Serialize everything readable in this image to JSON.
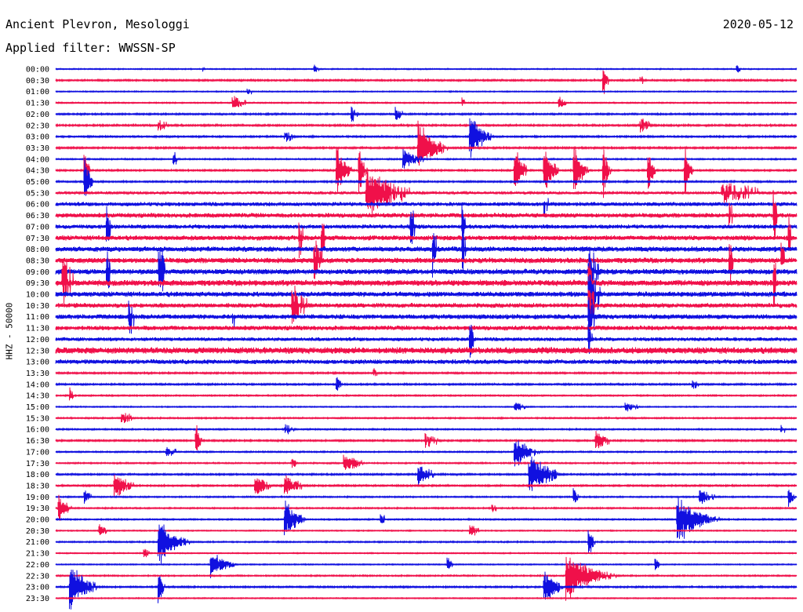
{
  "header": {
    "station": "Ancient Plevron, Mesologgi",
    "date": "2020-05-12",
    "filter": "Applied filter: WWSSN-SP"
  },
  "chart_data": {
    "type": "line",
    "title": "Ancient Plevron, Mesologgi",
    "ylabel": "HHZ - 50000",
    "colors": [
      "#1010e0",
      "#f0104a"
    ],
    "rows": [
      {
        "label": "00:00",
        "noise": 0.08,
        "events": [
          {
            "x": 0.2,
            "amp": 0.12,
            "dur": 0.01
          },
          {
            "x": 0.35,
            "amp": 0.15,
            "dur": 0.01
          },
          {
            "x": 0.92,
            "amp": 0.2,
            "dur": 0.005
          }
        ]
      },
      {
        "label": "00:30",
        "noise": 0.12,
        "events": [
          {
            "x": 0.74,
            "amp": 0.55,
            "dur": 0.005
          },
          {
            "x": 0.79,
            "amp": 0.18,
            "dur": 0.01
          }
        ]
      },
      {
        "label": "01:00",
        "noise": 0.08,
        "events": [
          {
            "x": 0.26,
            "amp": 0.15,
            "dur": 0.01
          }
        ]
      },
      {
        "label": "01:30",
        "noise": 0.09,
        "events": [
          {
            "x": 0.24,
            "amp": 0.25,
            "dur": 0.02
          },
          {
            "x": 0.55,
            "amp": 0.2,
            "dur": 0.005
          },
          {
            "x": 0.68,
            "amp": 0.25,
            "dur": 0.01
          }
        ]
      },
      {
        "label": "02:00",
        "noise": 0.12,
        "events": [
          {
            "x": 0.4,
            "amp": 0.3,
            "dur": 0.01
          },
          {
            "x": 0.46,
            "amp": 0.3,
            "dur": 0.01
          }
        ]
      },
      {
        "label": "02:30",
        "noise": 0.13,
        "events": [
          {
            "x": 0.14,
            "amp": 0.2,
            "dur": 0.03
          },
          {
            "x": 0.79,
            "amp": 0.3,
            "dur": 0.02
          }
        ]
      },
      {
        "label": "03:00",
        "noise": 0.12,
        "events": [
          {
            "x": 0.56,
            "amp": 1.0,
            "dur": 0.015
          },
          {
            "x": 0.31,
            "amp": 0.25,
            "dur": 0.02
          }
        ]
      },
      {
        "label": "03:30",
        "noise": 0.13,
        "events": [
          {
            "x": 0.49,
            "amp": 1.0,
            "dur": 0.02
          }
        ]
      },
      {
        "label": "04:00",
        "noise": 0.1,
        "events": [
          {
            "x": 0.47,
            "amp": 0.4,
            "dur": 0.02
          },
          {
            "x": 0.16,
            "amp": 0.3,
            "dur": 0.005
          }
        ]
      },
      {
        "label": "04:30",
        "noise": 0.12,
        "events": [
          {
            "x": 0.04,
            "amp": 1.0,
            "dur": 0.004
          },
          {
            "x": 0.38,
            "amp": 1.0,
            "dur": 0.01
          },
          {
            "x": 0.41,
            "amp": 1.0,
            "dur": 0.005
          },
          {
            "x": 0.62,
            "amp": 1.0,
            "dur": 0.01
          },
          {
            "x": 0.66,
            "amp": 1.0,
            "dur": 0.01
          },
          {
            "x": 0.7,
            "amp": 1.0,
            "dur": 0.01
          },
          {
            "x": 0.74,
            "amp": 1.0,
            "dur": 0.005
          },
          {
            "x": 0.8,
            "amp": 1.0,
            "dur": 0.005
          },
          {
            "x": 0.85,
            "amp": 1.0,
            "dur": 0.005
          }
        ]
      },
      {
        "label": "05:00",
        "noise": 0.12,
        "events": [
          {
            "x": 0.04,
            "amp": 1.0,
            "dur": 0.006
          }
        ]
      },
      {
        "label": "05:30",
        "noise": 0.22,
        "events": [
          {
            "x": 0.42,
            "amp": 1.0,
            "dur": 0.04
          },
          {
            "x": 0.9,
            "amp": 0.4,
            "dur": 0.1
          }
        ]
      },
      {
        "label": "06:00",
        "noise": 0.32,
        "events": [
          {
            "x": 0.66,
            "amp": 0.6,
            "dur": 0.01
          },
          {
            "x": 0.15,
            "amp": 0.3,
            "dur": 0.01
          }
        ]
      },
      {
        "label": "06:30",
        "noise": 0.36,
        "events": [
          {
            "x": 0.91,
            "amp": 0.7,
            "dur": 0.005
          },
          {
            "x": 0.97,
            "amp": 1.0,
            "dur": 0.005
          }
        ]
      },
      {
        "label": "07:00",
        "noise": 0.33,
        "events": [
          {
            "x": 0.48,
            "amp": 1.0,
            "dur": 0.005
          },
          {
            "x": 0.55,
            "amp": 1.0,
            "dur": 0.004
          },
          {
            "x": 0.07,
            "amp": 1.0,
            "dur": 0.004
          }
        ]
      },
      {
        "label": "07:30",
        "noise": 0.38,
        "events": [
          {
            "x": 0.33,
            "amp": 0.9,
            "dur": 0.005
          },
          {
            "x": 0.36,
            "amp": 1.0,
            "dur": 0.005
          },
          {
            "x": 0.99,
            "amp": 1.0,
            "dur": 0.005
          }
        ]
      },
      {
        "label": "08:00",
        "noise": 0.4,
        "events": [
          {
            "x": 0.51,
            "amp": 1.0,
            "dur": 0.005
          },
          {
            "x": 0.55,
            "amp": 1.0,
            "dur": 0.004
          }
        ]
      },
      {
        "label": "08:30",
        "noise": 0.42,
        "events": [
          {
            "x": 0.35,
            "amp": 1.0,
            "dur": 0.01
          },
          {
            "x": 0.91,
            "amp": 1.0,
            "dur": 0.005
          },
          {
            "x": 0.98,
            "amp": 1.0,
            "dur": 0.005
          }
        ]
      },
      {
        "label": "09:00",
        "noise": 0.42,
        "events": [
          {
            "x": 0.14,
            "amp": 1.0,
            "dur": 0.015
          },
          {
            "x": 0.07,
            "amp": 1.0,
            "dur": 0.005
          },
          {
            "x": 0.72,
            "amp": 1.0,
            "dur": 0.02
          }
        ]
      },
      {
        "label": "09:30",
        "noise": 0.46,
        "events": [
          {
            "x": 0.01,
            "amp": 1.0,
            "dur": 0.02
          },
          {
            "x": 0.72,
            "amp": 1.0,
            "dur": 0.01
          },
          {
            "x": 0.97,
            "amp": 1.0,
            "dur": 0.005
          }
        ]
      },
      {
        "label": "10:00",
        "noise": 0.4,
        "events": [
          {
            "x": 0.72,
            "amp": 1.0,
            "dur": 0.02
          },
          {
            "x": 0.2,
            "amp": 0.3,
            "dur": 0.01
          }
        ]
      },
      {
        "label": "10:30",
        "noise": 0.36,
        "events": [
          {
            "x": 0.32,
            "amp": 0.8,
            "dur": 0.03
          },
          {
            "x": 0.72,
            "amp": 1.0,
            "dur": 0.01
          }
        ]
      },
      {
        "label": "11:00",
        "noise": 0.38,
        "events": [
          {
            "x": 0.1,
            "amp": 0.8,
            "dur": 0.01
          },
          {
            "x": 0.24,
            "amp": 0.5,
            "dur": 0.01
          },
          {
            "x": 0.72,
            "amp": 1.0,
            "dur": 0.01
          },
          {
            "x": 0.77,
            "amp": 0.5,
            "dur": 0.01
          }
        ]
      },
      {
        "label": "11:30",
        "noise": 0.36,
        "events": []
      },
      {
        "label": "12:00",
        "noise": 0.3,
        "events": [
          {
            "x": 0.56,
            "amp": 0.9,
            "dur": 0.005
          },
          {
            "x": 0.72,
            "amp": 0.8,
            "dur": 0.005
          }
        ]
      },
      {
        "label": "12:30",
        "noise": 0.5,
        "events": []
      },
      {
        "label": "13:00",
        "noise": 0.36,
        "events": []
      },
      {
        "label": "13:30",
        "noise": 0.12,
        "events": [
          {
            "x": 0.43,
            "amp": 0.2,
            "dur": 0.01
          }
        ]
      },
      {
        "label": "14:00",
        "noise": 0.12,
        "events": [
          {
            "x": 0.38,
            "amp": 0.4,
            "dur": 0.005
          },
          {
            "x": 0.86,
            "amp": 0.2,
            "dur": 0.02
          }
        ]
      },
      {
        "label": "14:30",
        "noise": 0.1,
        "events": [
          {
            "x": 0.02,
            "amp": 0.3,
            "dur": 0.005
          }
        ]
      },
      {
        "label": "15:00",
        "noise": 0.08,
        "events": [
          {
            "x": 0.62,
            "amp": 0.2,
            "dur": 0.02
          },
          {
            "x": 0.77,
            "amp": 0.2,
            "dur": 0.02
          }
        ]
      },
      {
        "label": "15:30",
        "noise": 0.1,
        "events": [
          {
            "x": 0.09,
            "amp": 0.25,
            "dur": 0.02
          }
        ]
      },
      {
        "label": "16:00",
        "noise": 0.1,
        "events": [
          {
            "x": 0.31,
            "amp": 0.2,
            "dur": 0.02
          },
          {
            "x": 0.98,
            "amp": 0.2,
            "dur": 0.01
          }
        ]
      },
      {
        "label": "16:30",
        "noise": 0.12,
        "events": [
          {
            "x": 0.19,
            "amp": 0.6,
            "dur": 0.005
          },
          {
            "x": 0.5,
            "amp": 0.3,
            "dur": 0.02
          },
          {
            "x": 0.73,
            "amp": 0.35,
            "dur": 0.02
          }
        ]
      },
      {
        "label": "17:00",
        "noise": 0.1,
        "events": [
          {
            "x": 0.62,
            "amp": 0.6,
            "dur": 0.02
          },
          {
            "x": 0.15,
            "amp": 0.2,
            "dur": 0.02
          }
        ]
      },
      {
        "label": "17:30",
        "noise": 0.1,
        "events": [
          {
            "x": 0.39,
            "amp": 0.4,
            "dur": 0.02
          },
          {
            "x": 0.32,
            "amp": 0.2,
            "dur": 0.01
          }
        ]
      },
      {
        "label": "18:00",
        "noise": 0.12,
        "events": [
          {
            "x": 0.64,
            "amp": 1.0,
            "dur": 0.02
          },
          {
            "x": 0.49,
            "amp": 0.4,
            "dur": 0.02
          }
        ]
      },
      {
        "label": "18:30",
        "noise": 0.12,
        "events": [
          {
            "x": 0.08,
            "amp": 0.5,
            "dur": 0.02
          },
          {
            "x": 0.27,
            "amp": 0.4,
            "dur": 0.02
          },
          {
            "x": 0.31,
            "amp": 0.4,
            "dur": 0.02
          }
        ]
      },
      {
        "label": "19:00",
        "noise": 0.1,
        "events": [
          {
            "x": 0.04,
            "amp": 0.3,
            "dur": 0.01
          },
          {
            "x": 0.7,
            "amp": 0.4,
            "dur": 0.005
          },
          {
            "x": 0.87,
            "amp": 0.3,
            "dur": 0.02
          },
          {
            "x": 0.99,
            "amp": 0.5,
            "dur": 0.005
          }
        ]
      },
      {
        "label": "19:30",
        "noise": 0.1,
        "events": [
          {
            "x": 0.005,
            "amp": 0.6,
            "dur": 0.01
          },
          {
            "x": 0.59,
            "amp": 0.2,
            "dur": 0.01
          }
        ]
      },
      {
        "label": "20:00",
        "noise": 0.1,
        "events": [
          {
            "x": 0.31,
            "amp": 0.7,
            "dur": 0.015
          },
          {
            "x": 0.84,
            "amp": 1.0,
            "dur": 0.025
          },
          {
            "x": 0.44,
            "amp": 0.3,
            "dur": 0.005
          }
        ]
      },
      {
        "label": "20:30",
        "noise": 0.08,
        "events": [
          {
            "x": 0.06,
            "amp": 0.3,
            "dur": 0.01
          },
          {
            "x": 0.56,
            "amp": 0.3,
            "dur": 0.01
          }
        ]
      },
      {
        "label": "21:00",
        "noise": 0.1,
        "events": [
          {
            "x": 0.14,
            "amp": 0.9,
            "dur": 0.02
          },
          {
            "x": 0.72,
            "amp": 0.6,
            "dur": 0.005
          }
        ]
      },
      {
        "label": "21:30",
        "noise": 0.08,
        "events": [
          {
            "x": 0.12,
            "amp": 0.2,
            "dur": 0.01
          }
        ]
      },
      {
        "label": "22:00",
        "noise": 0.08,
        "events": [
          {
            "x": 0.21,
            "amp": 0.5,
            "dur": 0.02
          },
          {
            "x": 0.53,
            "amp": 0.3,
            "dur": 0.005
          },
          {
            "x": 0.81,
            "amp": 0.3,
            "dur": 0.005
          }
        ]
      },
      {
        "label": "22:30",
        "noise": 0.1,
        "events": [
          {
            "x": 0.69,
            "amp": 1.0,
            "dur": 0.03
          }
        ]
      },
      {
        "label": "23:00",
        "noise": 0.12,
        "events": [
          {
            "x": 0.02,
            "amp": 0.9,
            "dur": 0.02
          },
          {
            "x": 0.14,
            "amp": 0.7,
            "dur": 0.005
          },
          {
            "x": 0.66,
            "amp": 0.7,
            "dur": 0.015
          }
        ]
      },
      {
        "label": "23:30",
        "noise": 0.08,
        "events": []
      }
    ]
  }
}
